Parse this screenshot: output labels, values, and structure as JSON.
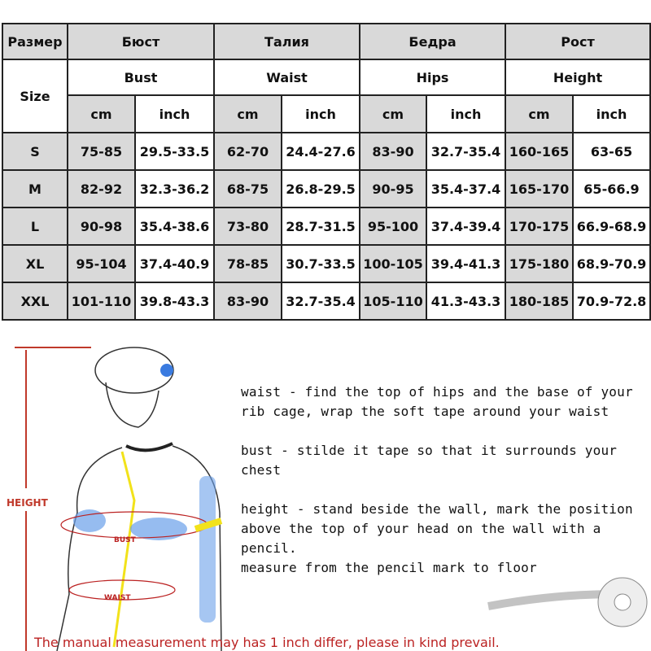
{
  "table": {
    "header_ru": [
      "Размер",
      "Бюст",
      "Талия",
      "Бедра",
      "Рост"
    ],
    "header_en": [
      "Size",
      "Bust",
      "Waist",
      "Hips",
      "Height"
    ],
    "units": [
      "cm",
      "inch"
    ],
    "rows": [
      [
        "S",
        "75-85",
        "29.5-33.5",
        "62-70",
        "24.4-27.6",
        "83-90",
        "32.7-35.4",
        "160-165",
        "63-65"
      ],
      [
        "M",
        "82-92",
        "32.3-36.2",
        "68-75",
        "26.8-29.5",
        "90-95",
        "35.4-37.4",
        "165-170",
        "65-66.9"
      ],
      [
        "L",
        "90-98",
        "35.4-38.6",
        "73-80",
        "28.7-31.5",
        "95-100",
        "37.4-39.4",
        "170-175",
        "66.9-68.9"
      ],
      [
        "XL",
        "95-104",
        "37.4-40.9",
        "78-85",
        "30.7-33.5",
        "100-105",
        "39.4-41.3",
        "175-180",
        "68.9-70.9"
      ],
      [
        "XXL",
        "101-110",
        "39.8-43.3",
        "83-90",
        "32.7-35.4",
        "105-110",
        "41.3-43.3",
        "180-185",
        "70.9-72.8"
      ]
    ]
  },
  "illustration": {
    "height_label": "HEIGHT",
    "bust_label": "BUST",
    "waist_label": "WAIST"
  },
  "instructions": {
    "waist_1": "waist - find the top of hips and the base of your",
    "waist_2": "rib cage, wrap the soft tape around your waist",
    "bust": "bust - stilde it tape so that it surrounds your chest",
    "height_1": "height - stand beside the wall, mark the position",
    "height_2": "above the top of your head on the wall with a pencil.",
    "height_3": "measure from the pencil mark to floor"
  },
  "footer": "The manual measurement may has 1 inch differ, please in kind prevail.",
  "colors": {
    "header_gray": "#d9d9d9",
    "accent_red": "#b22222",
    "highlight_blue": "#3a7be0",
    "tape_yellow": "#f2e21a"
  }
}
